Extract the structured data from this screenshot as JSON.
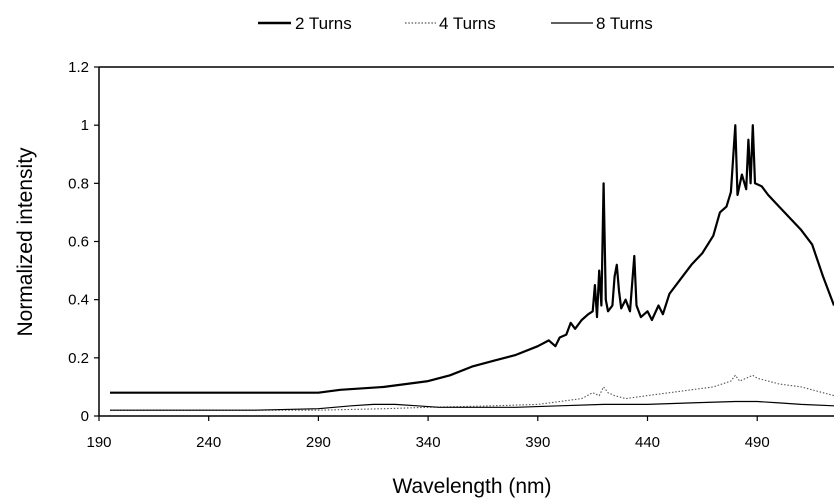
{
  "chart_data": {
    "type": "line",
    "xlabel": "Wavelength (nm)",
    "ylabel": "Normalized intensity",
    "xlim": [
      190,
      525
    ],
    "ylim": [
      0,
      1.2
    ],
    "x_ticks": [
      "190",
      "240",
      "290",
      "340",
      "390",
      "440",
      "490"
    ],
    "y_ticks": [
      "0",
      "0.2",
      "0.4",
      "0.6",
      "0.8",
      "1",
      "1.2"
    ],
    "grid": false,
    "legend_position": "top-center",
    "series": [
      {
        "name": "2 Turns",
        "style": "solid-thick",
        "color": "#000000",
        "points": [
          [
            195,
            0.08
          ],
          [
            230,
            0.08
          ],
          [
            260,
            0.08
          ],
          [
            290,
            0.08
          ],
          [
            300,
            0.09
          ],
          [
            320,
            0.1
          ],
          [
            340,
            0.12
          ],
          [
            350,
            0.14
          ],
          [
            360,
            0.17
          ],
          [
            370,
            0.19
          ],
          [
            380,
            0.21
          ],
          [
            390,
            0.24
          ],
          [
            395,
            0.26
          ],
          [
            398,
            0.24
          ],
          [
            400,
            0.27
          ],
          [
            403,
            0.28
          ],
          [
            405,
            0.32
          ],
          [
            407,
            0.3
          ],
          [
            410,
            0.33
          ],
          [
            413,
            0.35
          ],
          [
            415,
            0.36
          ],
          [
            416,
            0.45
          ],
          [
            417,
            0.34
          ],
          [
            418,
            0.5
          ],
          [
            419,
            0.38
          ],
          [
            420,
            0.8
          ],
          [
            421,
            0.4
          ],
          [
            422,
            0.36
          ],
          [
            424,
            0.38
          ],
          [
            425,
            0.48
          ],
          [
            426,
            0.52
          ],
          [
            427,
            0.43
          ],
          [
            428,
            0.37
          ],
          [
            430,
            0.4
          ],
          [
            432,
            0.36
          ],
          [
            434,
            0.55
          ],
          [
            435,
            0.38
          ],
          [
            437,
            0.34
          ],
          [
            440,
            0.36
          ],
          [
            442,
            0.33
          ],
          [
            445,
            0.38
          ],
          [
            447,
            0.35
          ],
          [
            450,
            0.42
          ],
          [
            455,
            0.47
          ],
          [
            460,
            0.52
          ],
          [
            465,
            0.56
          ],
          [
            470,
            0.62
          ],
          [
            473,
            0.7
          ],
          [
            476,
            0.72
          ],
          [
            478,
            0.77
          ],
          [
            480,
            1.0
          ],
          [
            481,
            0.76
          ],
          [
            483,
            0.83
          ],
          [
            485,
            0.78
          ],
          [
            486,
            0.95
          ],
          [
            487,
            0.8
          ],
          [
            488,
            1.0
          ],
          [
            489,
            0.8
          ],
          [
            492,
            0.79
          ],
          [
            495,
            0.76
          ],
          [
            500,
            0.72
          ],
          [
            505,
            0.68
          ],
          [
            510,
            0.64
          ],
          [
            515,
            0.59
          ],
          [
            520,
            0.48
          ],
          [
            525,
            0.38
          ]
        ]
      },
      {
        "name": "4 Turns",
        "style": "dotted",
        "color": "#555555",
        "points": [
          [
            195,
            0.02
          ],
          [
            230,
            0.02
          ],
          [
            260,
            0.02
          ],
          [
            290,
            0.02
          ],
          [
            320,
            0.025
          ],
          [
            340,
            0.03
          ],
          [
            370,
            0.035
          ],
          [
            390,
            0.04
          ],
          [
            400,
            0.05
          ],
          [
            410,
            0.06
          ],
          [
            415,
            0.08
          ],
          [
            418,
            0.07
          ],
          [
            420,
            0.1
          ],
          [
            422,
            0.08
          ],
          [
            425,
            0.07
          ],
          [
            430,
            0.06
          ],
          [
            435,
            0.065
          ],
          [
            440,
            0.07
          ],
          [
            450,
            0.08
          ],
          [
            460,
            0.09
          ],
          [
            470,
            0.1
          ],
          [
            478,
            0.12
          ],
          [
            480,
            0.14
          ],
          [
            482,
            0.12
          ],
          [
            485,
            0.13
          ],
          [
            488,
            0.14
          ],
          [
            490,
            0.13
          ],
          [
            495,
            0.12
          ],
          [
            500,
            0.11
          ],
          [
            510,
            0.1
          ],
          [
            520,
            0.08
          ],
          [
            525,
            0.07
          ]
        ]
      },
      {
        "name": "8 Turns",
        "style": "solid-thin",
        "color": "#000000",
        "points": [
          [
            195,
            0.02
          ],
          [
            230,
            0.02
          ],
          [
            260,
            0.02
          ],
          [
            290,
            0.025
          ],
          [
            305,
            0.035
          ],
          [
            315,
            0.04
          ],
          [
            325,
            0.04
          ],
          [
            335,
            0.035
          ],
          [
            345,
            0.03
          ],
          [
            360,
            0.03
          ],
          [
            380,
            0.03
          ],
          [
            400,
            0.035
          ],
          [
            420,
            0.04
          ],
          [
            440,
            0.04
          ],
          [
            460,
            0.045
          ],
          [
            480,
            0.05
          ],
          [
            490,
            0.05
          ],
          [
            500,
            0.045
          ],
          [
            510,
            0.04
          ],
          [
            525,
            0.035
          ]
        ]
      }
    ]
  }
}
